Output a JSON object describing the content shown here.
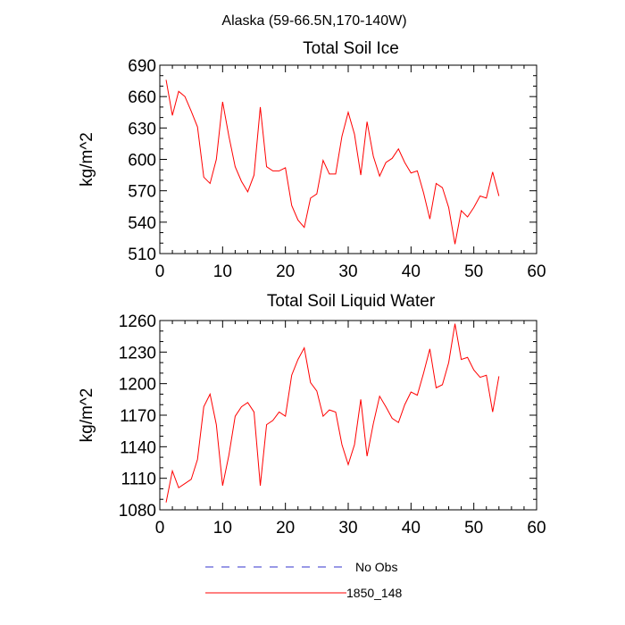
{
  "figure": {
    "title": "Alaska (59-66.5N,170-140W)"
  },
  "chart_data": [
    {
      "type": "line",
      "title": "Total Soil Ice",
      "ylabel": "kg/m^2",
      "xlabel": "",
      "xlim": [
        0,
        60
      ],
      "ylim": [
        510,
        690
      ],
      "xticks": [
        0,
        10,
        20,
        30,
        40,
        50,
        60
      ],
      "yticks": [
        510,
        540,
        570,
        600,
        630,
        660,
        690
      ],
      "grid": false,
      "series": [
        {
          "name": "1850_148",
          "color": "#ff0000",
          "x": [
            1,
            2,
            3,
            4,
            5,
            6,
            7,
            8,
            9,
            10,
            11,
            12,
            13,
            14,
            15,
            16,
            17,
            18,
            19,
            20,
            21,
            22,
            23,
            24,
            25,
            26,
            27,
            28,
            29,
            30,
            31,
            32,
            33,
            34,
            35,
            36,
            37,
            38,
            39,
            40,
            41,
            42,
            43,
            44,
            45,
            46,
            47,
            48,
            49,
            50,
            51,
            52,
            53,
            54
          ],
          "y": [
            676,
            642,
            665,
            660,
            646,
            631,
            583,
            577,
            600,
            655,
            622,
            593,
            579,
            569,
            585,
            650,
            593,
            589,
            589,
            592,
            556,
            542,
            535,
            563,
            567,
            599,
            586,
            586,
            622,
            645,
            624,
            585,
            636,
            603,
            584,
            597,
            601,
            610,
            597,
            587,
            589,
            568,
            543,
            577,
            573,
            554,
            519,
            551,
            545,
            554,
            565,
            563,
            588,
            565
          ]
        }
      ]
    },
    {
      "type": "line",
      "title": "Total Soil Liquid Water",
      "ylabel": "kg/m^2",
      "xlabel": "",
      "xlim": [
        0,
        60
      ],
      "ylim": [
        1080,
        1260
      ],
      "xticks": [
        0,
        10,
        20,
        30,
        40,
        50,
        60
      ],
      "yticks": [
        1080,
        1110,
        1140,
        1170,
        1200,
        1230,
        1260
      ],
      "grid": false,
      "series": [
        {
          "name": "1850_148",
          "color": "#ff0000",
          "x": [
            1,
            2,
            3,
            4,
            5,
            6,
            7,
            8,
            9,
            10,
            11,
            12,
            13,
            14,
            15,
            16,
            17,
            18,
            19,
            20,
            21,
            22,
            23,
            24,
            25,
            26,
            27,
            28,
            29,
            30,
            31,
            32,
            33,
            34,
            35,
            36,
            37,
            38,
            39,
            40,
            41,
            42,
            43,
            44,
            45,
            46,
            47,
            48,
            49,
            50,
            51,
            52,
            53,
            54
          ],
          "y": [
            1087,
            1117,
            1101,
            1105,
            1109,
            1128,
            1178,
            1190,
            1161,
            1103,
            1132,
            1169,
            1178,
            1182,
            1173,
            1103,
            1161,
            1165,
            1173,
            1169,
            1208,
            1223,
            1234,
            1201,
            1193,
            1169,
            1175,
            1173,
            1142,
            1123,
            1142,
            1185,
            1131,
            1162,
            1188,
            1178,
            1167,
            1163,
            1180,
            1192,
            1189,
            1210,
            1233,
            1196,
            1199,
            1220,
            1257,
            1223,
            1225,
            1213,
            1206,
            1208,
            1173,
            1207
          ]
        }
      ]
    }
  ],
  "legend": {
    "placement": "bottom-center",
    "entries": [
      {
        "label": "No Obs",
        "color": "#3333cc",
        "style": "dashed"
      },
      {
        "label": "1850_148",
        "color": "#ff0000",
        "style": "solid"
      }
    ]
  }
}
